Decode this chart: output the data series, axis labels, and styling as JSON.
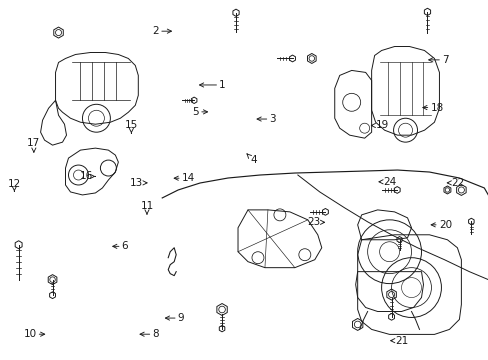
{
  "background_color": "#ffffff",
  "line_color": "#1a1a1a",
  "figsize": [
    4.89,
    3.6
  ],
  "dpi": 100,
  "callouts": [
    [
      1,
      0.4,
      0.235,
      0.455,
      0.235
    ],
    [
      2,
      0.358,
      0.085,
      0.318,
      0.085
    ],
    [
      3,
      0.518,
      0.33,
      0.558,
      0.33
    ],
    [
      4,
      0.5,
      0.42,
      0.518,
      0.445
    ],
    [
      5,
      0.432,
      0.31,
      0.4,
      0.31
    ],
    [
      6,
      0.222,
      0.685,
      0.255,
      0.685
    ],
    [
      7,
      0.87,
      0.165,
      0.912,
      0.165
    ],
    [
      8,
      0.278,
      0.93,
      0.318,
      0.93
    ],
    [
      9,
      0.33,
      0.885,
      0.37,
      0.885
    ],
    [
      10,
      0.098,
      0.93,
      0.06,
      0.93
    ],
    [
      11,
      0.3,
      0.605,
      0.3,
      0.572
    ],
    [
      12,
      0.028,
      0.54,
      0.028,
      0.51
    ],
    [
      13,
      0.308,
      0.508,
      0.278,
      0.508
    ],
    [
      14,
      0.348,
      0.495,
      0.385,
      0.495
    ],
    [
      15,
      0.268,
      0.378,
      0.268,
      0.348
    ],
    [
      16,
      0.2,
      0.49,
      0.175,
      0.49
    ],
    [
      17,
      0.068,
      0.425,
      0.068,
      0.398
    ],
    [
      18,
      0.858,
      0.298,
      0.895,
      0.298
    ],
    [
      19,
      0.758,
      0.348,
      0.782,
      0.348
    ],
    [
      20,
      0.875,
      0.625,
      0.912,
      0.625
    ],
    [
      21,
      0.792,
      0.948,
      0.822,
      0.948
    ],
    [
      22,
      0.908,
      0.508,
      0.938,
      0.508
    ],
    [
      23,
      0.672,
      0.618,
      0.642,
      0.618
    ],
    [
      24,
      0.768,
      0.505,
      0.798,
      0.505
    ]
  ]
}
